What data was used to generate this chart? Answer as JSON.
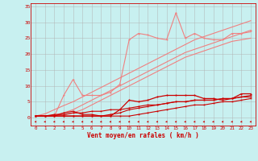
{
  "x": [
    0,
    1,
    2,
    3,
    4,
    5,
    6,
    7,
    8,
    9,
    10,
    11,
    12,
    13,
    14,
    15,
    16,
    17,
    18,
    19,
    20,
    21,
    22,
    23
  ],
  "line1": [
    0.5,
    0.5,
    0.5,
    7.0,
    12.0,
    7.0,
    7.0,
    7.0,
    8.0,
    10.5,
    24.5,
    26.5,
    26.0,
    25.0,
    24.5,
    33.0,
    25.0,
    26.5,
    25.0,
    24.5,
    24.5,
    26.5,
    26.5,
    27.5
  ],
  "line2": [
    0.5,
    0.5,
    0.5,
    0.5,
    0.5,
    0.5,
    0.5,
    0.5,
    0.5,
    2.5,
    5.5,
    5.0,
    5.5,
    6.5,
    7.0,
    7.0,
    7.0,
    7.0,
    6.0,
    6.0,
    5.5,
    6.0,
    7.5,
    7.5
  ],
  "line3_vals": [
    0.5,
    0.5,
    1.0,
    1.0,
    1.5,
    1.5,
    2.0,
    2.0,
    2.5,
    2.5,
    3.0,
    3.5,
    4.0,
    4.0,
    4.5,
    5.0,
    5.0,
    5.5,
    5.5,
    5.5,
    6.0,
    6.0,
    6.5,
    7.0
  ],
  "line4_vals": [
    0.5,
    0.5,
    0.5,
    1.5,
    2.0,
    1.0,
    1.0,
    0.5,
    1.0,
    1.5,
    2.5,
    3.0,
    3.5,
    4.0,
    4.5,
    5.0,
    5.0,
    5.5,
    5.5,
    5.5,
    6.0,
    6.0,
    6.5,
    6.5
  ],
  "line5_vals": [
    0.5,
    0.5,
    0.5,
    0.5,
    0.5,
    0.5,
    0.5,
    0.5,
    0.5,
    0.5,
    0.5,
    1.0,
    1.5,
    2.0,
    2.5,
    3.0,
    3.5,
    4.0,
    4.0,
    4.5,
    5.0,
    5.0,
    5.5,
    6.0
  ],
  "diagonal1": [
    0.5,
    1.2,
    2.5,
    3.8,
    5.0,
    6.5,
    8.0,
    9.5,
    11.0,
    12.5,
    14.0,
    15.5,
    17.0,
    18.5,
    20.0,
    21.5,
    23.0,
    24.5,
    25.5,
    26.5,
    27.5,
    28.5,
    29.5,
    30.5
  ],
  "diagonal2": [
    0.5,
    0.5,
    0.8,
    1.5,
    2.5,
    4.0,
    5.5,
    7.0,
    8.5,
    10.0,
    11.5,
    13.0,
    14.5,
    16.0,
    17.5,
    19.0,
    20.5,
    21.5,
    22.5,
    23.5,
    24.5,
    25.5,
    26.5,
    27.0
  ],
  "diagonal3": [
    0.5,
    0.5,
    0.5,
    0.8,
    1.5,
    2.5,
    4.0,
    5.5,
    7.0,
    8.5,
    10.0,
    11.5,
    13.0,
    14.5,
    16.0,
    17.5,
    19.0,
    20.0,
    21.0,
    22.0,
    23.0,
    24.0,
    24.5,
    25.0
  ],
  "bg_color": "#c8f0f0",
  "grid_color": "#b0b0b0",
  "line_pink": "#f08080",
  "line_red": "#cc0000",
  "yticks": [
    0,
    5,
    10,
    15,
    20,
    25,
    30,
    35
  ],
  "xticks": [
    0,
    1,
    2,
    3,
    4,
    5,
    6,
    7,
    8,
    9,
    10,
    11,
    12,
    13,
    14,
    15,
    16,
    17,
    18,
    19,
    20,
    21,
    22,
    23
  ],
  "xlabel": "Vent moyen/en rafales ( km/h )"
}
